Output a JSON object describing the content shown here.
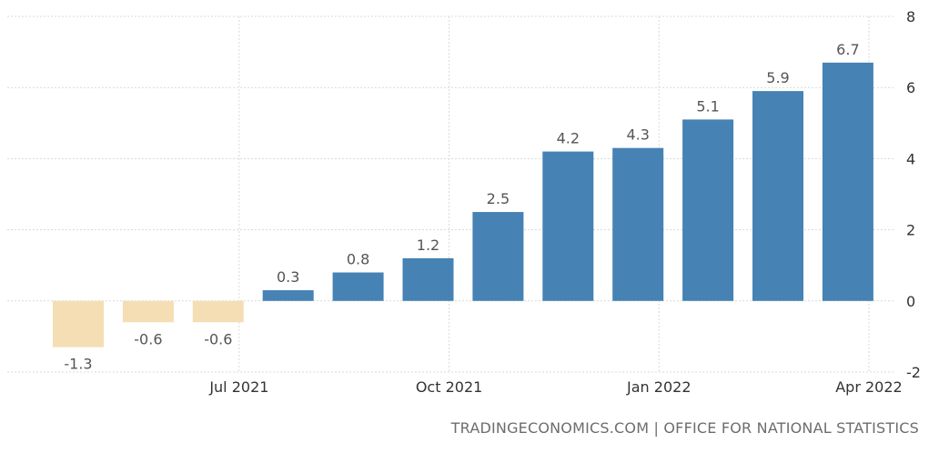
{
  "chart_data": {
    "type": "bar",
    "title": "",
    "xlabel": "",
    "ylabel": "",
    "ylim": [
      -2,
      8
    ],
    "yticks": [
      "8",
      "6",
      "4",
      "2",
      "0",
      "-2"
    ],
    "ytick_values": [
      8,
      6,
      4,
      2,
      0,
      -2
    ],
    "xtick_labels": [
      {
        "label": "Jul 2021",
        "at_index": 2.3
      },
      {
        "label": "Oct 2021",
        "at_index": 5.3
      },
      {
        "label": "Jan 2022",
        "at_index": 8.3
      },
      {
        "label": "Apr 2022",
        "at_index": 11.3
      }
    ],
    "grid": true,
    "legend": "none",
    "series": [
      {
        "values": [
          -1.3,
          -0.6,
          -0.6,
          0.3,
          0.8,
          1.2,
          2.5,
          4.2,
          4.3,
          5.1,
          5.9,
          6.7
        ],
        "labels": [
          "-1.3",
          "-0.6",
          "-0.6",
          "0.3",
          "0.8",
          "1.2",
          "2.5",
          "4.2",
          "4.3",
          "5.1",
          "5.9",
          "6.7"
        ]
      }
    ],
    "colors": {
      "positive": "#4682b4",
      "negative": "#f5deb3"
    }
  },
  "footer": {
    "source": "TRADINGECONOMICS.COM | OFFICE FOR NATIONAL STATISTICS"
  }
}
